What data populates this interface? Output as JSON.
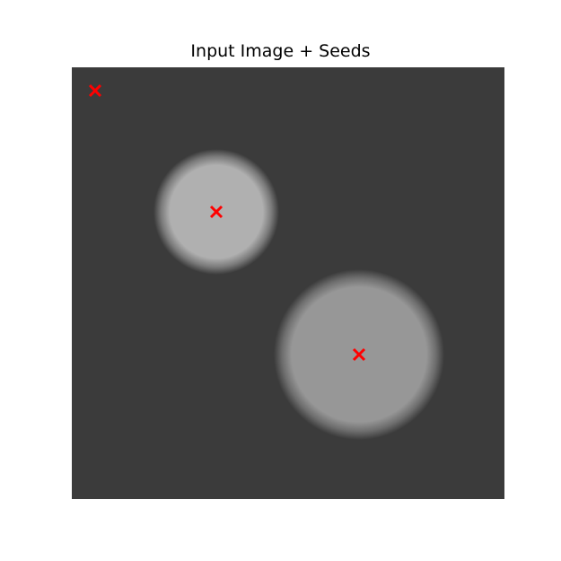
{
  "title": "Input Image + Seeds",
  "image": {
    "background_color": "#3b3b3b",
    "blobs": [
      {
        "name": "small-blob",
        "color": "#b0b0b0"
      },
      {
        "name": "large-blob",
        "color": "#979797"
      }
    ]
  },
  "seed_marker": {
    "shape": "x",
    "color": "#ff0000",
    "count": 3
  }
}
